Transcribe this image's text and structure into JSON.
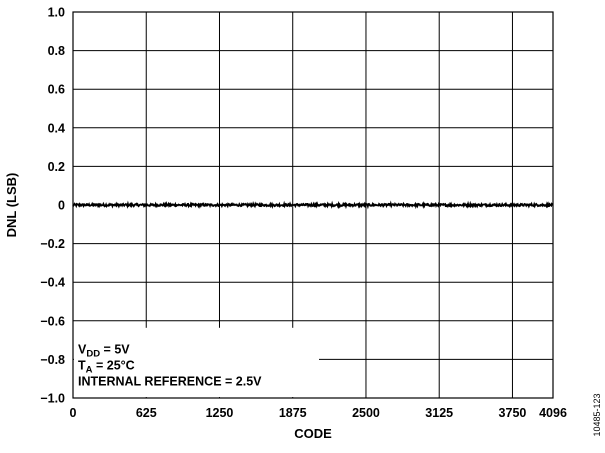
{
  "chart_data": {
    "type": "line",
    "title": "",
    "xlabel": "CODE",
    "ylabel": "DNL (LSB)",
    "xlim": [
      0,
      4096
    ],
    "ylim": [
      -1.0,
      1.0
    ],
    "grid": true,
    "x_ticks": [
      0,
      625,
      1250,
      1875,
      2500,
      3125,
      3750,
      4096
    ],
    "x_tick_labels": [
      "0",
      "625",
      "1250",
      "1875",
      "2500",
      "3125",
      "3750",
      "4096"
    ],
    "y_ticks": [
      1.0,
      0.8,
      0.6,
      0.4,
      0.2,
      0,
      -0.2,
      -0.4,
      -0.6,
      -0.8,
      -1.0
    ],
    "y_tick_labels": [
      "1.0",
      "0.8",
      "0.6",
      "0.4",
      "0.2",
      "0",
      "−0.2",
      "−0.4",
      "−0.6",
      "−0.8",
      "−1.0"
    ],
    "series": [
      {
        "x": [
          0,
          4095
        ],
        "y": [
          0.0,
          0.0
        ],
        "noise_amplitude_lsb": 0.006,
        "color": "#000000"
      }
    ],
    "annotations": {
      "vdd": {
        "base": "V",
        "sub": "DD",
        "rest": " = 5V"
      },
      "ta": {
        "base": "T",
        "sub": "A",
        "rest": " = 25°C"
      },
      "ref": "INTERNAL REFERENCE = 2.5V"
    },
    "figure_id": "10485-123"
  }
}
